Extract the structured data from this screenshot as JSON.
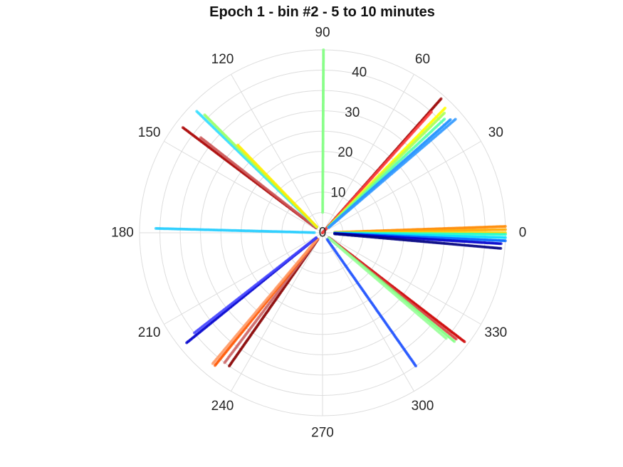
{
  "chart_data": {
    "type": "scatter",
    "coordinate_system": "polar",
    "title": "Epoch 1 - bin #2 - 5 to 10 minutes",
    "theta_unit": "degrees",
    "theta_ticks": [
      0,
      30,
      60,
      90,
      120,
      150,
      180,
      210,
      240,
      270,
      300,
      330
    ],
    "r_ticks": [
      0,
      10,
      20,
      30,
      40
    ],
    "r_range": [
      0,
      45
    ],
    "grid": true,
    "legend": "none",
    "colormap": "jet",
    "series": [
      {
        "theta": 89.7,
        "r": [
          5,
          45
        ],
        "color": "#80ff80"
      },
      {
        "theta": 48.5,
        "r": [
          0,
          44
        ],
        "color": "#990000"
      },
      {
        "theta": 48.0,
        "r": [
          0,
          40
        ],
        "color": "#ff4040"
      },
      {
        "theta": 45.5,
        "r": [
          2,
          43
        ],
        "color": "#ffff00"
      },
      {
        "theta": 44.5,
        "r": [
          2,
          42
        ],
        "color": "#aaff55"
      },
      {
        "theta": 43.0,
        "r": [
          2,
          41
        ],
        "color": "#55ffaa"
      },
      {
        "theta": 41.5,
        "r": [
          2,
          42
        ],
        "color": "#1e90ff"
      },
      {
        "theta": 40.5,
        "r": [
          2,
          43
        ],
        "color": "#3399ff"
      },
      {
        "theta": 2.0,
        "r": [
          3,
          45
        ],
        "color": "#ff8800"
      },
      {
        "theta": 1.0,
        "r": [
          3,
          45
        ],
        "color": "#ffaa00"
      },
      {
        "theta": 0.0,
        "r": [
          3,
          45
        ],
        "color": "#ffd700"
      },
      {
        "theta": -0.5,
        "r": [
          3,
          45
        ],
        "color": "#22ffcc"
      },
      {
        "theta": -1.5,
        "r": [
          3,
          45
        ],
        "color": "#00ddff"
      },
      {
        "theta": -2.5,
        "r": [
          3,
          45
        ],
        "color": "#0066ff"
      },
      {
        "theta": -3.5,
        "r": [
          3,
          44
        ],
        "color": "#0000cc"
      },
      {
        "theta": -5.0,
        "r": [
          3,
          44
        ],
        "color": "#000080"
      },
      {
        "theta": -37.5,
        "r": [
          2,
          44
        ],
        "color": "#cc0000"
      },
      {
        "theta": -38.5,
        "r": [
          2,
          42
        ],
        "color": "#d84040"
      },
      {
        "theta": -39.5,
        "r": [
          2,
          42
        ],
        "color": "#80ff80"
      },
      {
        "theta": -40.5,
        "r": [
          2,
          40
        ],
        "color": "#99ff99"
      },
      {
        "theta": -55.0,
        "r": [
          2,
          40
        ],
        "color": "#1e50ff"
      },
      {
        "theta": -125.0,
        "r": [
          2,
          40
        ],
        "color": "#880000"
      },
      {
        "theta": -127.0,
        "r": [
          2,
          40
        ],
        "color": "#cc6666"
      },
      {
        "theta": -129.0,
        "r": [
          2,
          42
        ],
        "color": "#ff5500"
      },
      {
        "theta": -130.0,
        "r": [
          2,
          42
        ],
        "color": "#ff9966"
      },
      {
        "theta": -141.0,
        "r": [
          2,
          43
        ],
        "color": "#0000cc"
      },
      {
        "theta": -142.0,
        "r": [
          2,
          40
        ],
        "color": "#4444ff"
      },
      {
        "theta": 178.5,
        "r": [
          2,
          41
        ],
        "color": "#22ccff"
      },
      {
        "theta": 143.0,
        "r": [
          2,
          43
        ],
        "color": "#aa0000"
      },
      {
        "theta": 142.0,
        "r": [
          2,
          38
        ],
        "color": "#cc5555"
      },
      {
        "theta": 136.0,
        "r": [
          2,
          43
        ],
        "color": "#33ddff"
      },
      {
        "theta": 135.0,
        "r": [
          2,
          41
        ],
        "color": "#99ff66"
      },
      {
        "theta": 134.0,
        "r": [
          2,
          30
        ],
        "color": "#ffee00"
      }
    ]
  }
}
